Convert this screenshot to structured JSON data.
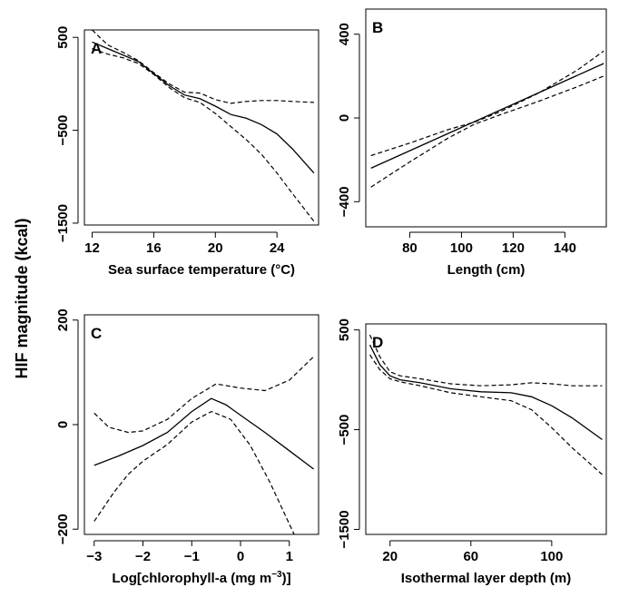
{
  "figure": {
    "shared_ylabel": "HIF magnitude (kcal)"
  },
  "chart_data": [
    {
      "type": "line",
      "panel": "A",
      "xlabel": "Sea surface temperature (°C)",
      "xlim": [
        11.5,
        26.7
      ],
      "ylim": [
        -1520,
        580
      ],
      "xticks": [
        12,
        16,
        20,
        24
      ],
      "yticks": [
        500,
        -500,
        -1500
      ],
      "ytick_labels": [
        "500",
        "−500",
        "−1500"
      ],
      "series": [
        {
          "role": "fit",
          "x": [
            12,
            13,
            14,
            15,
            16,
            17,
            18,
            19,
            20,
            21,
            22,
            23,
            24,
            25,
            26.4
          ],
          "y": [
            450,
            380,
            310,
            240,
            110,
            -20,
            -120,
            -160,
            -240,
            -330,
            -370,
            -440,
            -540,
            -700,
            -960
          ]
        },
        {
          "role": "upper-ci",
          "x": [
            12,
            13,
            14,
            15,
            16,
            17,
            18,
            19,
            20,
            21,
            22,
            23,
            24,
            25,
            26.4
          ],
          "y": [
            580,
            420,
            340,
            250,
            120,
            0,
            -90,
            -100,
            -170,
            -210,
            -190,
            -180,
            -180,
            -190,
            -200
          ]
        },
        {
          "role": "lower-ci",
          "x": [
            12,
            13,
            14,
            15,
            16,
            17,
            18,
            19,
            20,
            21,
            22,
            23,
            24,
            25,
            26.4
          ],
          "y": [
            380,
            320,
            280,
            220,
            100,
            -40,
            -150,
            -200,
            -320,
            -460,
            -600,
            -760,
            -960,
            -1180,
            -1480
          ]
        }
      ]
    },
    {
      "type": "line",
      "panel": "B",
      "xlabel": "Length (cm)",
      "xlim": [
        63,
        156
      ],
      "ylim": [
        -520,
        520
      ],
      "xticks": [
        80,
        100,
        120,
        140
      ],
      "yticks": [
        400,
        0,
        -400
      ],
      "ytick_labels": [
        "400",
        "0",
        "−400"
      ],
      "series": [
        {
          "role": "fit",
          "x": [
            65,
            155
          ],
          "y": [
            -240,
            260
          ]
        },
        {
          "role": "upper-ci",
          "x": [
            65,
            80,
            95,
            105,
            115,
            130,
            145,
            155
          ],
          "y": [
            -180,
            -120,
            -55,
            -20,
            30,
            120,
            230,
            320
          ]
        },
        {
          "role": "lower-ci",
          "x": [
            65,
            80,
            95,
            105,
            115,
            130,
            145,
            155
          ],
          "y": [
            -330,
            -210,
            -95,
            -30,
            15,
            80,
            150,
            200
          ]
        }
      ]
    },
    {
      "type": "line",
      "panel": "C",
      "xlabel": "Log[chlorophyll-a (mg m⁻³)]",
      "xlim": [
        -3.2,
        1.6
      ],
      "ylim": [
        -210,
        210
      ],
      "xticks": [
        -3,
        -2,
        -1,
        0,
        1
      ],
      "xtick_labels": [
        "−3",
        "−2",
        "−1",
        "0",
        "1"
      ],
      "yticks": [
        200,
        0,
        -200
      ],
      "ytick_labels": [
        "200",
        "0",
        "−200"
      ],
      "series": [
        {
          "role": "fit",
          "x": [
            -3,
            -2.5,
            -2,
            -1.5,
            -1,
            -0.6,
            -0.3,
            0,
            0.5,
            1,
            1.5
          ],
          "y": [
            -78,
            -60,
            -40,
            -15,
            25,
            50,
            38,
            18,
            -15,
            -50,
            -85
          ]
        },
        {
          "role": "upper-ci",
          "x": [
            -3,
            -2.7,
            -2.3,
            -2,
            -1.5,
            -1,
            -0.5,
            0,
            0.5,
            1,
            1.5
          ],
          "y": [
            22,
            -5,
            -15,
            -12,
            10,
            50,
            78,
            70,
            65,
            85,
            130
          ]
        },
        {
          "role": "lower-ci",
          "x": [
            -3,
            -2.6,
            -2.3,
            -2,
            -1.5,
            -1,
            -0.6,
            -0.2,
            0.2,
            0.6,
            1.1
          ],
          "y": [
            -185,
            -130,
            -95,
            -70,
            -38,
            5,
            25,
            10,
            -40,
            -110,
            -210
          ]
        }
      ]
    },
    {
      "type": "line",
      "panel": "D",
      "xlabel": "Isothermal layer depth (m)",
      "xlim": [
        8,
        127
      ],
      "ylim": [
        -1550,
        560
      ],
      "xticks": [
        20,
        60,
        100
      ],
      "yticks": [
        500,
        -500,
        -1500
      ],
      "ytick_labels": [
        "500",
        "−500",
        "−1500"
      ],
      "series": [
        {
          "role": "fit",
          "x": [
            10,
            15,
            20,
            25,
            35,
            50,
            65,
            80,
            90,
            100,
            110,
            125
          ],
          "y": [
            350,
            150,
            40,
            0,
            -30,
            -90,
            -120,
            -130,
            -170,
            -260,
            -380,
            -600
          ]
        },
        {
          "role": "upper-ci",
          "x": [
            10,
            15,
            20,
            25,
            35,
            50,
            65,
            80,
            90,
            100,
            110,
            125
          ],
          "y": [
            450,
            230,
            80,
            40,
            10,
            -40,
            -60,
            -50,
            -30,
            -40,
            -60,
            -60
          ]
        },
        {
          "role": "lower-ci",
          "x": [
            10,
            15,
            20,
            25,
            35,
            50,
            65,
            80,
            90,
            100,
            110,
            125
          ],
          "y": [
            250,
            100,
            10,
            -20,
            -60,
            -130,
            -170,
            -210,
            -300,
            -480,
            -680,
            -950
          ]
        }
      ]
    }
  ]
}
